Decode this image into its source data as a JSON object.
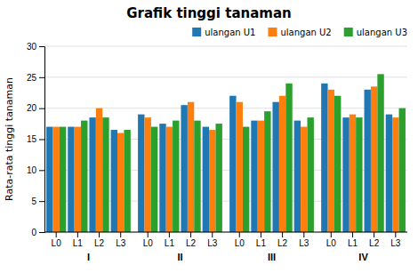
{
  "chart_data": {
    "type": "bar",
    "title": "Grafik tinggi tanaman",
    "ylabel": "Rata-rata tinggi tanaman",
    "groups": [
      "I",
      "II",
      "III",
      "IV"
    ],
    "categories": [
      "L0",
      "L1",
      "L2",
      "L3",
      "L0",
      "L1",
      "L2",
      "L3",
      "L0",
      "L1",
      "L2",
      "L3",
      "L0",
      "L1",
      "L2",
      "L3"
    ],
    "series": [
      {
        "name": "ulangan U1",
        "values": [
          17,
          17,
          18.5,
          16.5,
          19,
          17.5,
          20.5,
          17,
          22,
          18,
          21,
          18,
          24,
          18.5,
          23,
          19
        ]
      },
      {
        "name": "ulangan U2",
        "values": [
          17,
          17,
          20,
          16,
          18.5,
          17,
          21,
          16.5,
          21,
          18,
          22,
          17,
          23,
          19,
          23.5,
          18.5
        ]
      },
      {
        "name": "ulangan U3",
        "values": [
          17,
          18,
          18.5,
          16.5,
          17,
          18,
          18,
          17.5,
          17,
          19.5,
          24,
          18.5,
          22,
          18.5,
          25.5,
          20
        ]
      }
    ],
    "ylim": [
      0,
      30
    ],
    "yticks": [
      0,
      5,
      10,
      15,
      20,
      25,
      30
    ],
    "grid": true,
    "legend": "upper right"
  }
}
